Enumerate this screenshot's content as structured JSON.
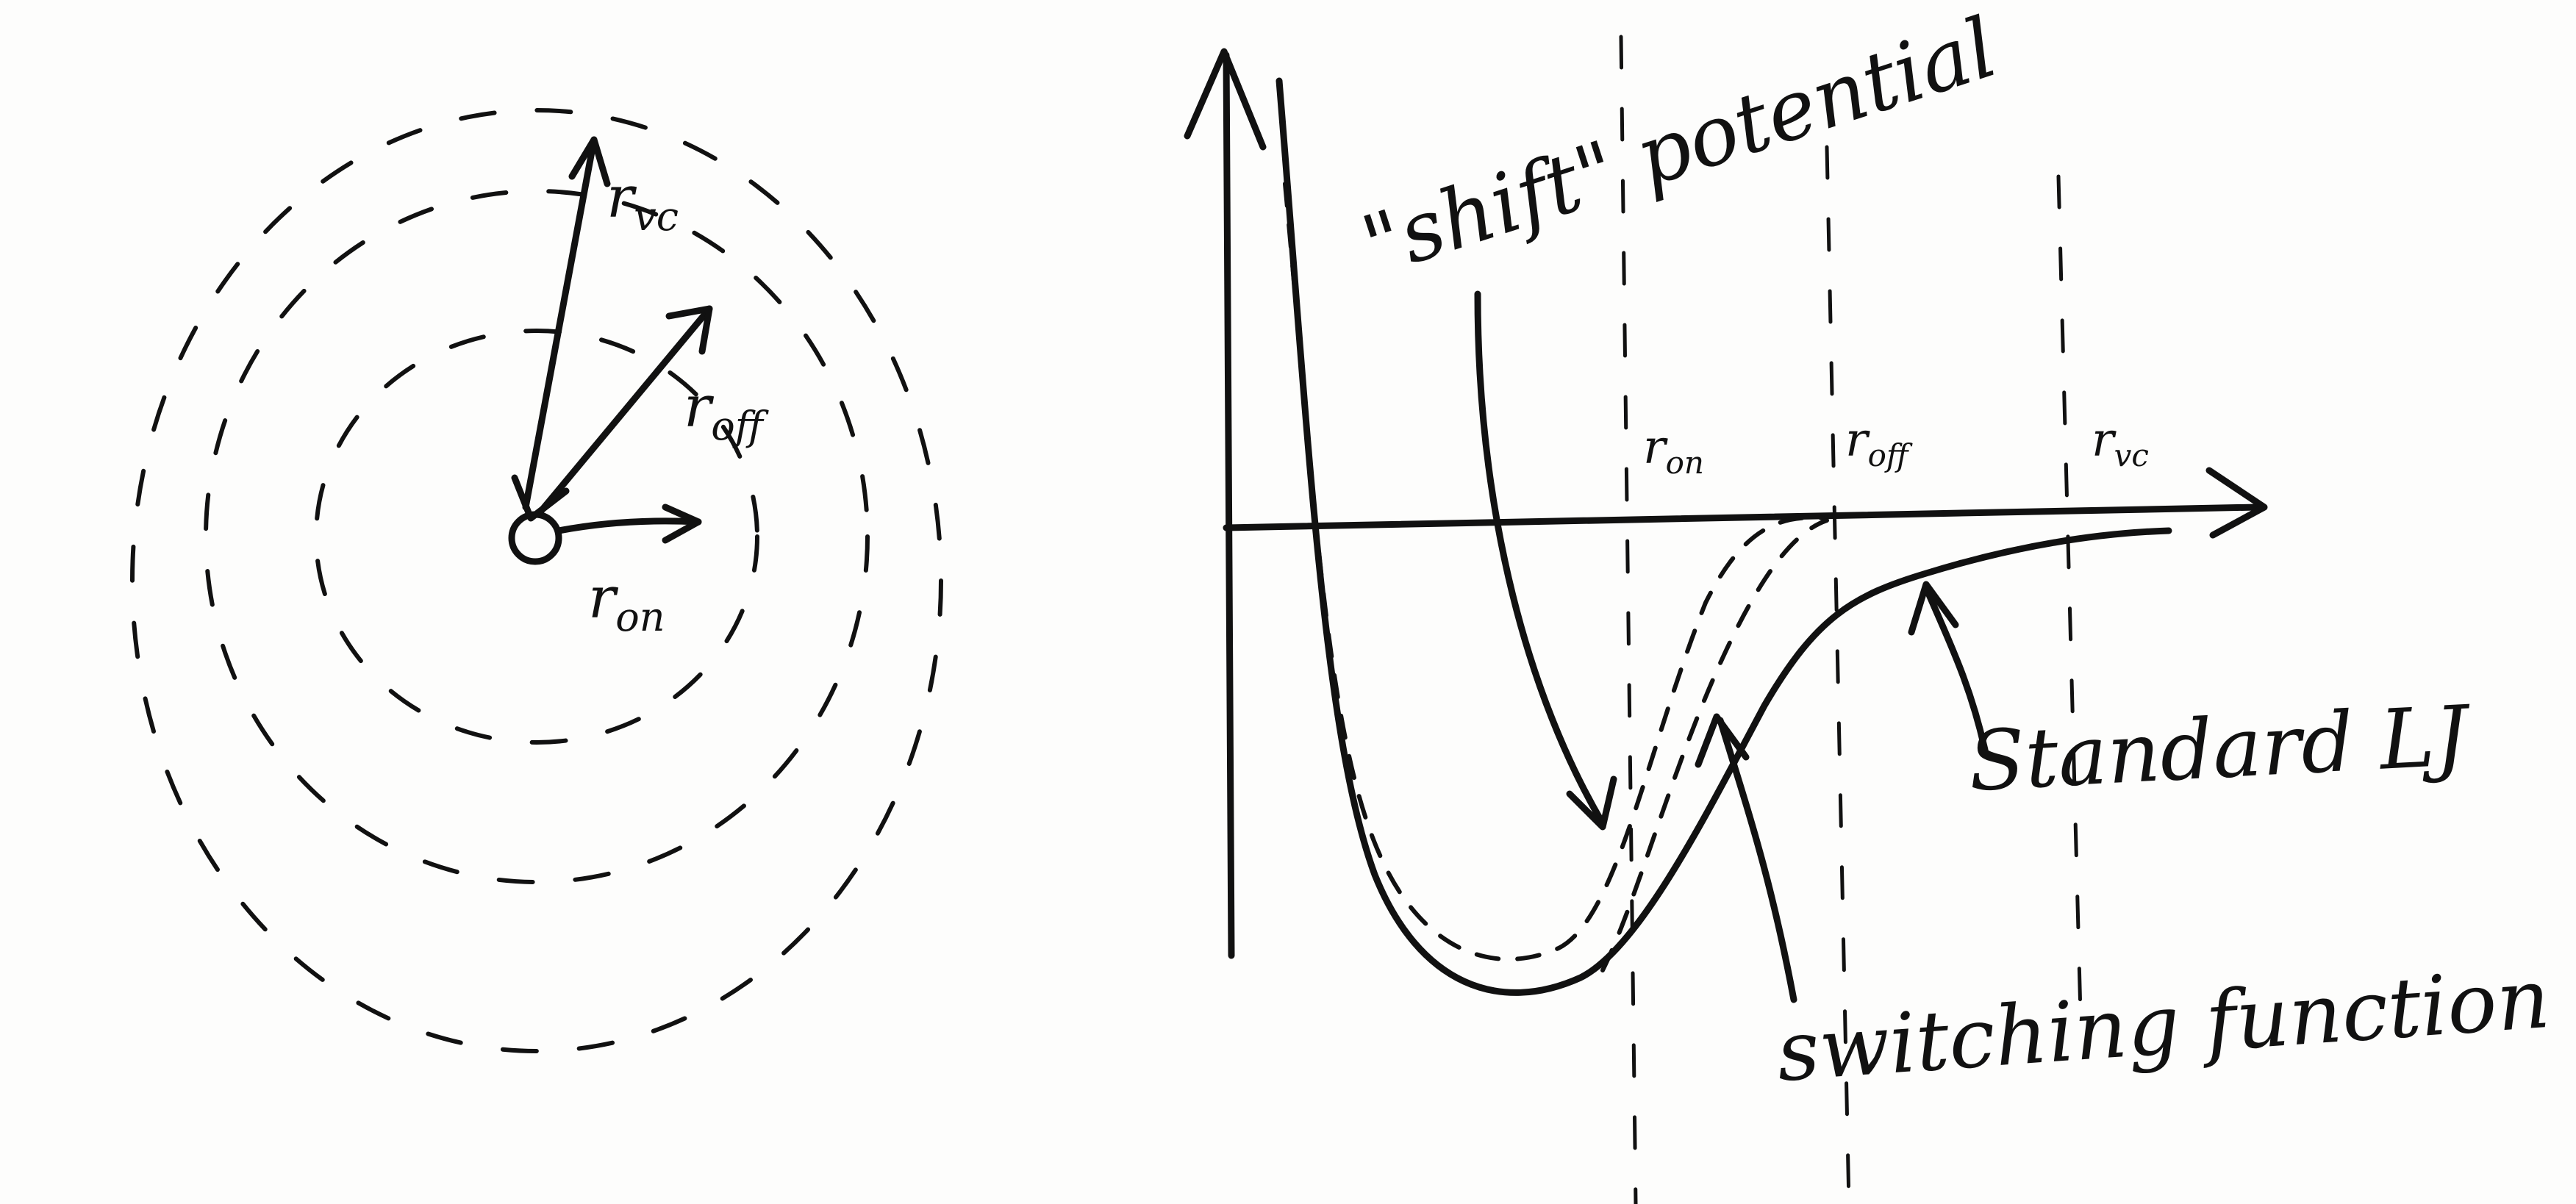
{
  "labels": {
    "r_vc": {
      "symbol": "r",
      "sub": "vc"
    },
    "r_off": {
      "symbol": "r",
      "sub": "off"
    },
    "r_on": {
      "symbol": "r",
      "sub": "on"
    },
    "axis_r_on": {
      "symbol": "r",
      "sub": "on"
    },
    "axis_r_off": {
      "symbol": "r",
      "sub": "off"
    },
    "axis_r_vc": {
      "symbol": "r",
      "sub": "vc"
    },
    "shift_potential": "\"shift\" potential",
    "standard_lj": "Standard LJ",
    "switching_function": "switching function"
  },
  "curves": [
    "Standard LJ",
    "\"shift\" potential",
    "switching function"
  ],
  "colors": {
    "ink": "#111111",
    "paper": "#fdfdfc"
  }
}
